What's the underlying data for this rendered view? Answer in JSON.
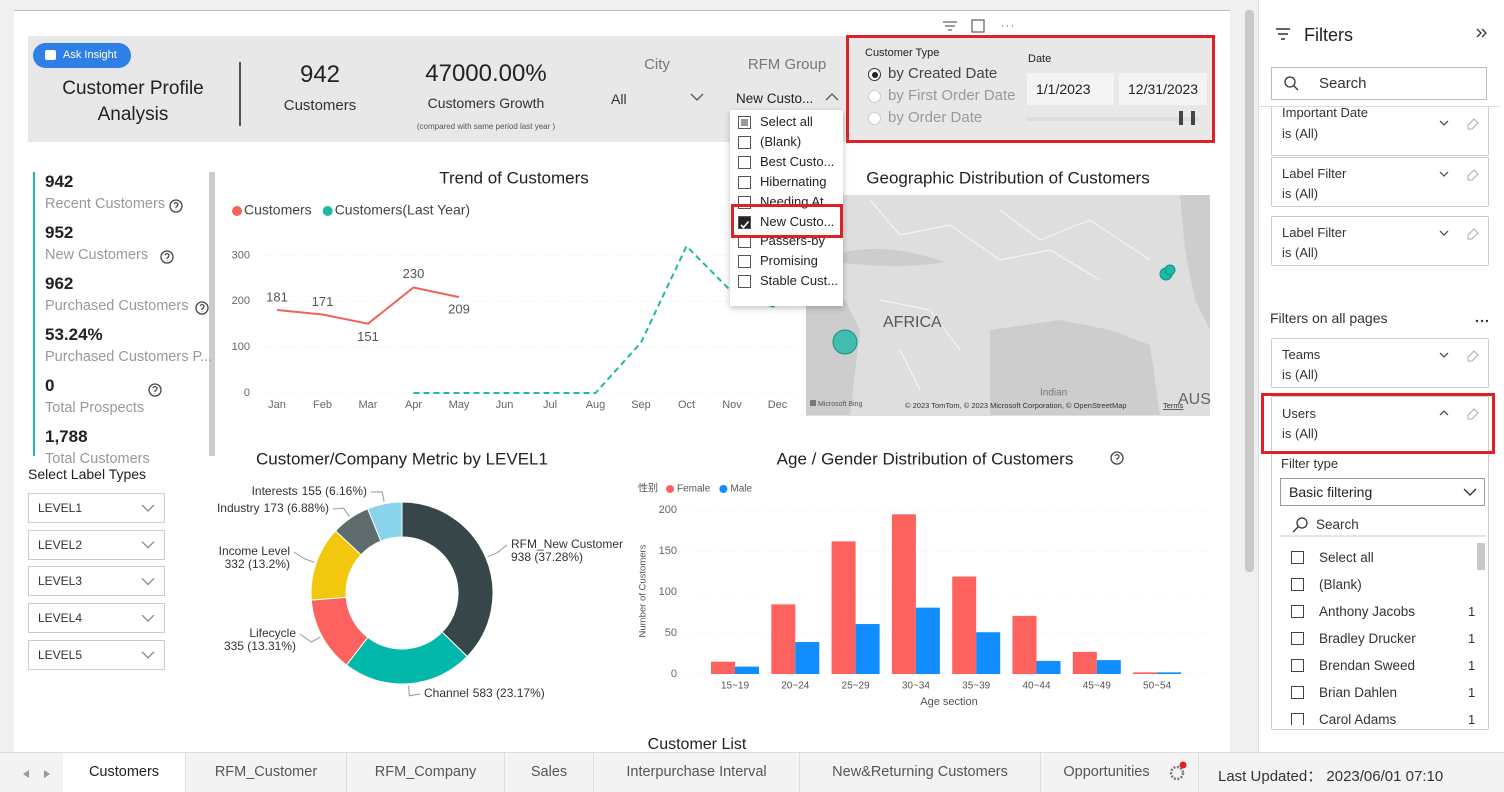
{
  "header": {
    "ask_insight": "Ask Insight",
    "title": "Customer Profile Analysis",
    "kpis": [
      {
        "value": "942",
        "label": "Customers"
      },
      {
        "value": "47000.00%",
        "label": "Customers Growth",
        "note": "(compared with same period last year )"
      }
    ]
  },
  "slicers": {
    "city": {
      "label": "City",
      "value": "All"
    },
    "rfm_group": {
      "label": "RFM Group",
      "value": "New Custo...",
      "options": [
        "Select all",
        "(Blank)",
        "Best Custo...",
        "Hibernating",
        "Needing At...",
        "New Custo...",
        "Passers-by",
        "Promising",
        "Stable Cust..."
      ],
      "checked": 5
    },
    "customer_type": {
      "label": "Customer Type",
      "options": [
        "by Created Date",
        "by First Order Date",
        "by Order Date"
      ],
      "selected": 0
    },
    "date": {
      "label": "Date",
      "start": "1/1/2023",
      "end": "12/31/2023"
    }
  },
  "metrics": [
    {
      "value": "942",
      "label": "Recent Customers"
    },
    {
      "value": "952",
      "label": "New Customers"
    },
    {
      "value": "962",
      "label": "Purchased Customers"
    },
    {
      "value": "53.24%",
      "label": "Purchased Customers P..."
    },
    {
      "value": "0",
      "label": "Total Prospects"
    },
    {
      "value": "1,788",
      "label": "Total Customers"
    }
  ],
  "label_types": {
    "title": "Select Label Types",
    "levels": [
      "LEVEL1",
      "LEVEL2",
      "LEVEL3",
      "LEVEL4",
      "LEVEL5"
    ]
  },
  "trend_chart": {
    "type": "line",
    "title": "Trend of Customers",
    "categories": [
      "Jan",
      "Feb",
      "Mar",
      "Apr",
      "May",
      "Jun",
      "Jul",
      "Aug",
      "Sep",
      "Oct",
      "Nov",
      "Dec"
    ],
    "series": [
      {
        "name": "Customers",
        "color": "#f0635c",
        "data_labels": true,
        "values": [
          181,
          171,
          151,
          230,
          209,
          null,
          null,
          null,
          null,
          null,
          null,
          null
        ]
      },
      {
        "name": "Customers(Last Year)",
        "color": "#1fb8a8",
        "dashed": true,
        "values": [
          null,
          null,
          null,
          0,
          0,
          0,
          0,
          0,
          110,
          320,
          220,
          185
        ]
      }
    ],
    "ylim": [
      0,
      340
    ],
    "yticks": [
      0,
      100,
      200,
      300
    ]
  },
  "map": {
    "title": "Geographic Distribution of Customers",
    "labels": [
      "AFRICA",
      "Indian",
      "AUS"
    ],
    "logo": "Microsoft Bing",
    "attribution": "© 2023 TomTom, © 2023 Microsoft Corporation, © OpenStreetMap",
    "terms": "Terms"
  },
  "donut_chart": {
    "type": "pie",
    "title": "Customer/Company Metric by LEVEL1",
    "categories": [
      "RFM_New Customer",
      "Channel",
      "Lifecycle",
      "Income Level",
      "Industry",
      "Interests"
    ],
    "values": [
      938,
      583,
      335,
      332,
      173,
      155
    ],
    "value_labels": [
      "938 (37.28%)",
      "583 (23.17%)",
      "335 (13.31%)",
      "332 (13.2%)",
      "173 (6.88%)",
      "155 (6.16%)"
    ],
    "colors": [
      "#374649",
      "#01b8aa",
      "#fd625e",
      "#f2c80f",
      "#5f6b6d",
      "#8ad4eb"
    ]
  },
  "bar_chart": {
    "type": "bar",
    "title": "Age / Gender Distribution of Customers",
    "legend_title": "性别",
    "x_label": "Age section",
    "y_label": "Number of Customers",
    "categories": [
      "15~19",
      "20~24",
      "25~29",
      "30~34",
      "35~39",
      "40~44",
      "45~49",
      "50~54"
    ],
    "series": [
      {
        "name": "Female",
        "color": "#fd625e",
        "values": [
          15,
          85,
          162,
          195,
          119,
          71,
          27,
          2
        ]
      },
      {
        "name": "Male",
        "color": "#118dff",
        "values": [
          9,
          39,
          61,
          81,
          51,
          16,
          17,
          2
        ]
      }
    ],
    "ylim": [
      0,
      210
    ],
    "yticks": [
      0,
      50,
      100,
      150,
      200
    ]
  },
  "customer_list": {
    "title": "Customer List"
  },
  "tabs": {
    "items": [
      "Customers",
      "RFM_Customer",
      "RFM_Company",
      "Sales",
      "Interpurchase Interval",
      "New&Returning Customers",
      "Opportunities"
    ],
    "active": 0
  },
  "last_updated": "Last Updated： 2023/06/01 07:10",
  "filters": {
    "title": "Filters",
    "search": "Search",
    "page_cards": [
      {
        "name": "Important Date",
        "state": "is (All)"
      },
      {
        "name": "Label Filter",
        "state": "is (All)"
      },
      {
        "name": "Label Filter",
        "state": "is (All)"
      }
    ],
    "all_pages_title": "Filters on all pages",
    "all_pages_cards": [
      {
        "name": "Teams",
        "state": "is (All)"
      },
      {
        "name": "Users",
        "state": "is (All)"
      }
    ],
    "filter_type_label": "Filter type",
    "filter_type": "Basic filtering",
    "list_search": "Search",
    "items": [
      {
        "name": "Select all"
      },
      {
        "name": "(Blank)"
      },
      {
        "name": "Anthony Jacobs",
        "count": "1"
      },
      {
        "name": "Bradley Drucker",
        "count": "1"
      },
      {
        "name": "Brendan Sweed",
        "count": "1"
      },
      {
        "name": "Brian Dahlen",
        "count": "1"
      },
      {
        "name": "Carol Adams",
        "count": "1"
      }
    ]
  }
}
